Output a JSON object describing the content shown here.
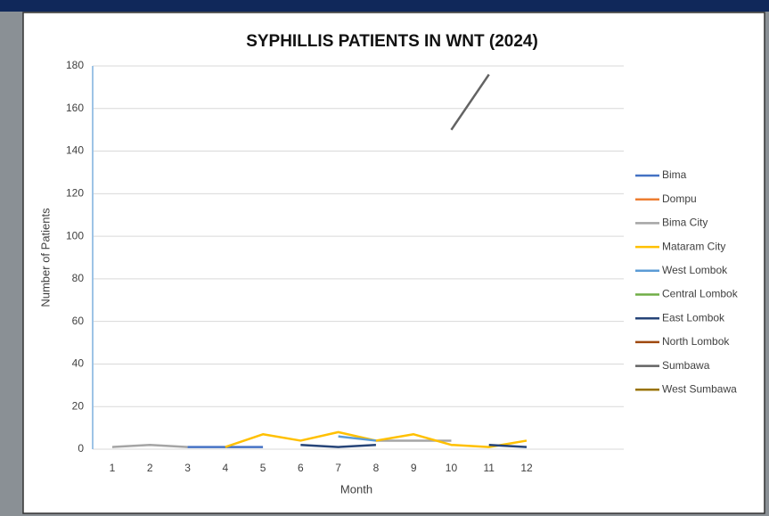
{
  "chart_data": {
    "type": "line",
    "title": "SYPHILLIS PATIENTS IN WNT (2024)",
    "x_label": "Month",
    "y_label": "Number of Patients",
    "categories": [
      "1",
      "2",
      "3",
      "4",
      "5",
      "6",
      "7",
      "8",
      "9",
      "10",
      "11",
      "12"
    ],
    "ylim": [
      0,
      180
    ],
    "yticks": [
      0,
      20,
      40,
      60,
      80,
      100,
      120,
      140,
      160,
      180
    ],
    "grid": true,
    "legend": "right",
    "series": [
      {
        "name": "Bima",
        "color": "#4472c4",
        "values": [
          null,
          null,
          1,
          1,
          1,
          null,
          null,
          null,
          null,
          null,
          null,
          null
        ]
      },
      {
        "name": "Dompu",
        "color": "#ed7d31",
        "values": [
          null,
          null,
          null,
          null,
          null,
          null,
          null,
          null,
          null,
          null,
          null,
          null
        ]
      },
      {
        "name": "Bima City",
        "color": "#a5a5a5",
        "values": [
          1,
          2,
          1,
          null,
          null,
          null,
          null,
          4,
          4,
          4,
          null,
          null
        ]
      },
      {
        "name": "Mataram City",
        "color": "#ffc000",
        "values": [
          null,
          null,
          null,
          1,
          7,
          4,
          8,
          4,
          7,
          2,
          1,
          4
        ]
      },
      {
        "name": "West Lombok",
        "color": "#5b9bd5",
        "values": [
          null,
          null,
          null,
          null,
          null,
          null,
          6,
          4,
          null,
          null,
          null,
          null
        ]
      },
      {
        "name": "Central Lombok",
        "color": "#70ad47",
        "values": [
          null,
          null,
          null,
          null,
          null,
          null,
          null,
          null,
          null,
          null,
          null,
          null
        ]
      },
      {
        "name": "East Lombok",
        "color": "#264478",
        "values": [
          null,
          null,
          null,
          null,
          null,
          2,
          1,
          2,
          null,
          null,
          2,
          1
        ]
      },
      {
        "name": "North Lombok",
        "color": "#9e480e",
        "values": [
          null,
          null,
          null,
          null,
          null,
          null,
          null,
          null,
          null,
          null,
          null,
          null
        ]
      },
      {
        "name": "Sumbawa",
        "color": "#636363",
        "values": [
          null,
          null,
          null,
          null,
          null,
          null,
          null,
          null,
          null,
          150,
          176,
          null
        ]
      },
      {
        "name": "West Sumbawa",
        "color": "#997300",
        "values": [
          null,
          null,
          null,
          null,
          null,
          null,
          null,
          null,
          null,
          null,
          null,
          null
        ]
      }
    ]
  }
}
